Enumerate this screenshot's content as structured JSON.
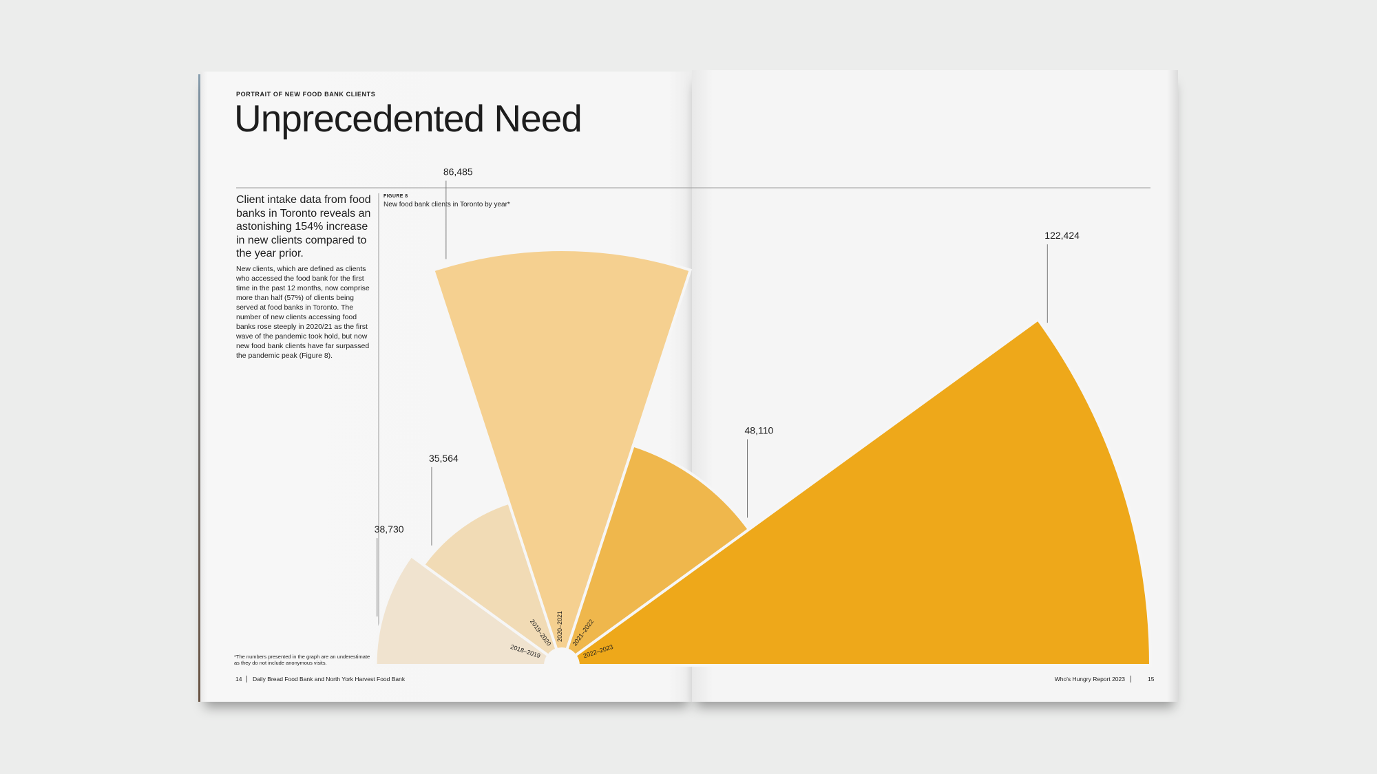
{
  "header": {
    "kicker": "PORTRAIT OF NEW FOOD BANK CLIENTS",
    "title": "Unprecedented Need"
  },
  "intro": {
    "lead": "Client intake data from food banks in Toronto reveals an astonishing 154% increase in new clients compared to the year prior.",
    "body": "New clients, which are defined as clients who accessed the food bank for the first time in the past 12 months, now comprise more than half (57%) of clients being served at food banks in Toronto. The number of new clients accessing food banks rose steeply in 2020/21 as the first wave of the pandemic took hold, but now new food bank clients have far surpassed the pandemic peak (Figure 8)."
  },
  "chart_data": {
    "type": "polar_area",
    "label": "FIGURE 8",
    "title": "New food bank clients in Toronto by year*",
    "categories": [
      "2018–2019",
      "2019–2020",
      "2020–2021",
      "2021–2022",
      "2022–2023"
    ],
    "values": [
      38730,
      35564,
      86485,
      48110,
      122424
    ],
    "value_labels": [
      "38,730",
      "35,564",
      "86,485",
      "48,110",
      "122,424"
    ],
    "colors": [
      "#f0e3cf",
      "#f1dbb5",
      "#f5d090",
      "#efb74c",
      "#eea81a"
    ]
  },
  "footnote": "*The numbers presented in the graph are an underestimate as they do not include anonymous visits.",
  "footer": {
    "left_page": "14",
    "left_text": "Daily Bread Food Bank and North York Harvest Food Bank",
    "right_text": "Who's Hungry Report 2023",
    "right_page": "15"
  }
}
